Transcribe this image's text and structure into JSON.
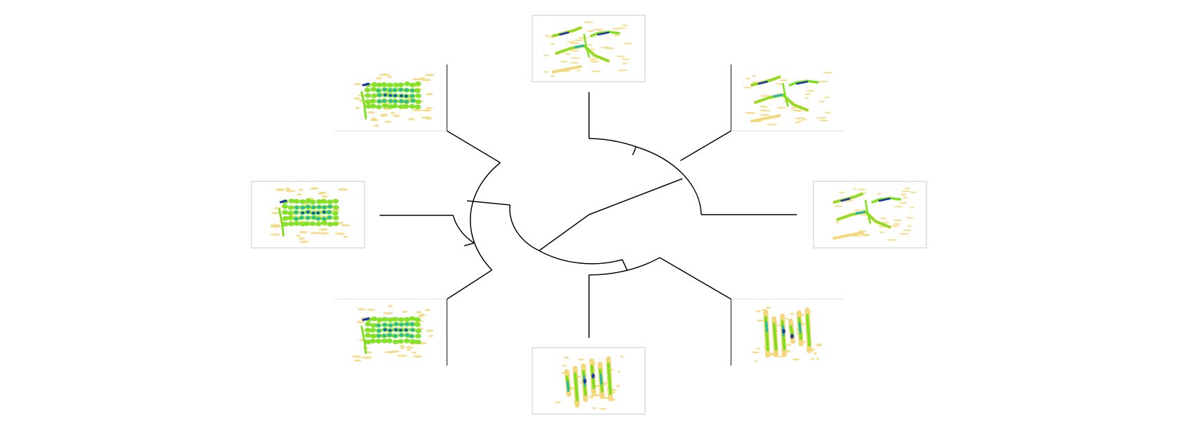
{
  "diagram": {
    "kind": "circular-dendrogram",
    "palette": {
      "background": "#ffffff",
      "branch": "#000000",
      "frame": "#c8c8c8",
      "spectrogram_low": "#f4d77a",
      "spectrogram_mid": "#7ee01c",
      "spectrogram_high": "#1fb8b0",
      "spectrogram_peak": "#1a2fb8"
    },
    "leaves": [
      {
        "id": "leaf-top",
        "pattern": "harmonic-sweeps",
        "framed": true
      },
      {
        "id": "leaf-upper-right",
        "pattern": "harmonic-sweeps",
        "framed": false
      },
      {
        "id": "leaf-right",
        "pattern": "harmonic-sweeps",
        "framed": true
      },
      {
        "id": "leaf-lower-right",
        "pattern": "vertical-pulses",
        "framed": false
      },
      {
        "id": "leaf-bottom",
        "pattern": "vertical-pulses",
        "framed": true
      },
      {
        "id": "leaf-lower-left",
        "pattern": "broadband-cluster",
        "framed": false
      },
      {
        "id": "leaf-left",
        "pattern": "broadband-cluster",
        "framed": true
      },
      {
        "id": "leaf-upper-left",
        "pattern": "broadband-cluster",
        "framed": false
      }
    ]
  }
}
